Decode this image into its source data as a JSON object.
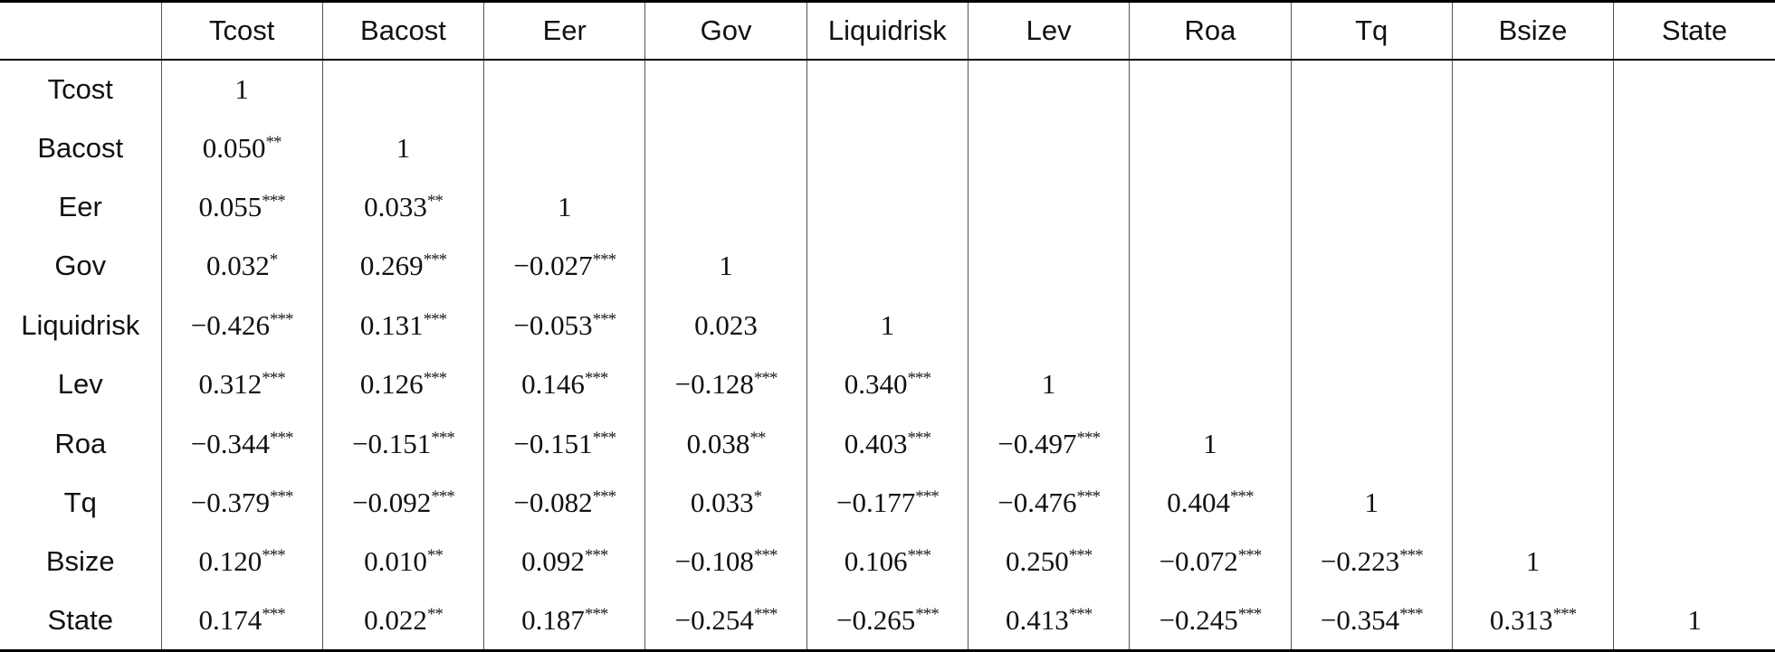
{
  "columns": [
    "",
    "Tcost",
    "Bacost",
    "Eer",
    "Gov",
    "Liquidrisk",
    "Lev",
    "Roa",
    "Tq",
    "Bsize",
    "State"
  ],
  "rows": [
    {
      "label": "Tcost",
      "cells": [
        {
          "v": "1",
          "s": ""
        }
      ]
    },
    {
      "label": "Bacost",
      "cells": [
        {
          "v": "0.050",
          "s": "**"
        },
        {
          "v": "1",
          "s": ""
        }
      ]
    },
    {
      "label": "Eer",
      "cells": [
        {
          "v": "0.055",
          "s": "***"
        },
        {
          "v": "0.033",
          "s": "**"
        },
        {
          "v": "1",
          "s": ""
        }
      ]
    },
    {
      "label": "Gov",
      "cells": [
        {
          "v": "0.032",
          "s": "*"
        },
        {
          "v": "0.269",
          "s": "***"
        },
        {
          "v": "−0.027",
          "s": "***"
        },
        {
          "v": "1",
          "s": ""
        }
      ]
    },
    {
      "label": "Liquidrisk",
      "cells": [
        {
          "v": "−0.426",
          "s": "***"
        },
        {
          "v": "0.131",
          "s": "***"
        },
        {
          "v": "−0.053",
          "s": "***"
        },
        {
          "v": "0.023",
          "s": ""
        },
        {
          "v": "1",
          "s": ""
        }
      ]
    },
    {
      "label": "Lev",
      "cells": [
        {
          "v": "0.312",
          "s": "***"
        },
        {
          "v": "0.126",
          "s": "***"
        },
        {
          "v": "0.146",
          "s": "***"
        },
        {
          "v": "−0.128",
          "s": "***"
        },
        {
          "v": "0.340",
          "s": "***"
        },
        {
          "v": "1",
          "s": ""
        }
      ]
    },
    {
      "label": "Roa",
      "cells": [
        {
          "v": "−0.344",
          "s": "***"
        },
        {
          "v": "−0.151",
          "s": "***"
        },
        {
          "v": "−0.151",
          "s": "***"
        },
        {
          "v": "0.038",
          "s": "**"
        },
        {
          "v": "0.403",
          "s": "***"
        },
        {
          "v": "−0.497",
          "s": "***"
        },
        {
          "v": "1",
          "s": ""
        }
      ]
    },
    {
      "label": "Tq",
      "cells": [
        {
          "v": "−0.379",
          "s": "***"
        },
        {
          "v": "−0.092",
          "s": "***"
        },
        {
          "v": "−0.082",
          "s": "***"
        },
        {
          "v": "0.033",
          "s": "*"
        },
        {
          "v": "−0.177",
          "s": "***"
        },
        {
          "v": "−0.476",
          "s": "***"
        },
        {
          "v": "0.404",
          "s": "***"
        },
        {
          "v": "1",
          "s": ""
        }
      ]
    },
    {
      "label": "Bsize",
      "cells": [
        {
          "v": "0.120",
          "s": "***"
        },
        {
          "v": "0.010",
          "s": "**"
        },
        {
          "v": "0.092",
          "s": "***"
        },
        {
          "v": "−0.108",
          "s": "***"
        },
        {
          "v": "0.106",
          "s": "***"
        },
        {
          "v": "0.250",
          "s": "***"
        },
        {
          "v": "−0.072",
          "s": "***"
        },
        {
          "v": "−0.223",
          "s": "***"
        },
        {
          "v": "1",
          "s": ""
        }
      ]
    },
    {
      "label": "State",
      "cells": [
        {
          "v": "0.174",
          "s": "***"
        },
        {
          "v": "0.022",
          "s": "**"
        },
        {
          "v": "0.187",
          "s": "***"
        },
        {
          "v": "−0.254",
          "s": "***"
        },
        {
          "v": "−0.265",
          "s": "***"
        },
        {
          "v": "0.413",
          "s": "***"
        },
        {
          "v": "−0.245",
          "s": "***"
        },
        {
          "v": "−0.354",
          "s": "***"
        },
        {
          "v": "0.313",
          "s": "***"
        },
        {
          "v": "1",
          "s": ""
        }
      ]
    }
  ]
}
